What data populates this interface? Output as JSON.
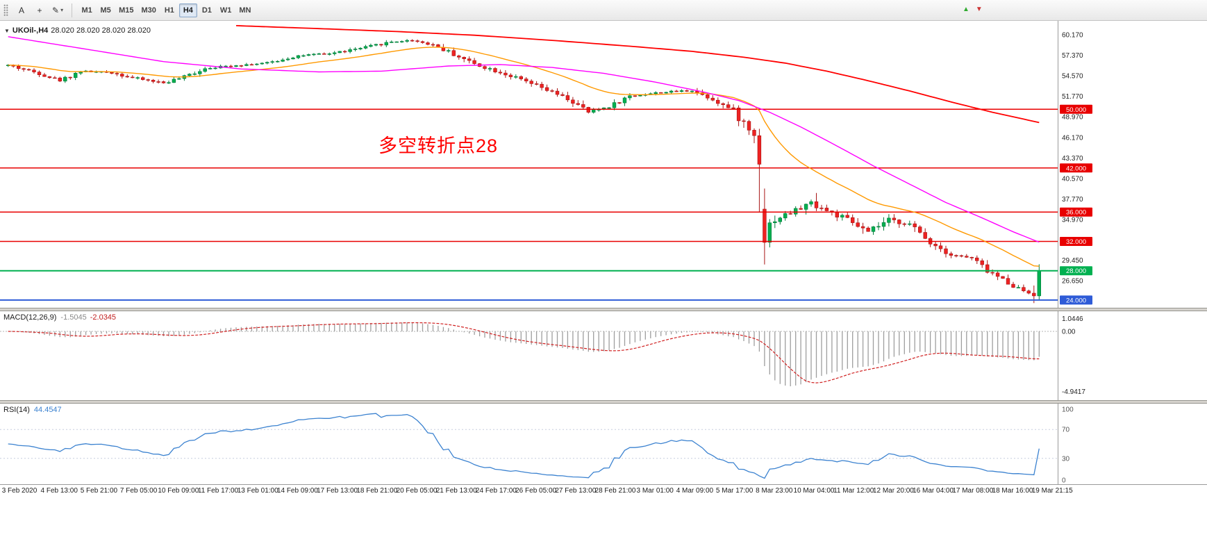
{
  "toolbar": {
    "tools": {
      "text_tool": "A"
    },
    "timeframes": [
      {
        "label": "M1",
        "active": false
      },
      {
        "label": "M5",
        "active": false
      },
      {
        "label": "M15",
        "active": false
      },
      {
        "label": "M30",
        "active": false
      },
      {
        "label": "H1",
        "active": false
      },
      {
        "label": "H4",
        "active": true
      },
      {
        "label": "D1",
        "active": false
      },
      {
        "label": "W1",
        "active": false
      },
      {
        "label": "MN",
        "active": false
      }
    ]
  },
  "icons": {
    "pencil": "✎",
    "caret": "▾",
    "crosshair": "+",
    "dropdown_triangle": "▼",
    "up_arrow": "▲",
    "down_arrow": "▼"
  },
  "chart": {
    "title_symbol": "UKOil-,H4",
    "title_ohlc": "28.020 28.020 28.020 28.020",
    "annotation": {
      "text": "多空转折点28",
      "color": "#ff0000"
    },
    "axis_labels": [
      {
        "p": 60.17,
        "t": "60.170"
      },
      {
        "p": 57.37,
        "t": "57.370"
      },
      {
        "p": 54.57,
        "t": "54.570"
      },
      {
        "p": 51.77,
        "t": "51.770"
      },
      {
        "p": 48.97,
        "t": "48.970"
      },
      {
        "p": 46.17,
        "t": "46.170"
      },
      {
        "p": 43.37,
        "t": "43.370"
      },
      {
        "p": 40.57,
        "t": "40.570"
      },
      {
        "p": 37.77,
        "t": "37.770"
      },
      {
        "p": 34.97,
        "t": "34.970"
      },
      {
        "p": 29.45,
        "t": "29.450"
      },
      {
        "p": 26.65,
        "t": "26.650"
      }
    ],
    "hlines": [
      {
        "p": 50.0,
        "t": "50.000",
        "c": "#e80000",
        "w": 1.5
      },
      {
        "p": 42.0,
        "t": "42.000",
        "c": "#e80000",
        "w": 1.5
      },
      {
        "p": 36.0,
        "t": "36.000",
        "c": "#e80000",
        "w": 1.5
      },
      {
        "p": 32.0,
        "t": "32.000",
        "c": "#e80000",
        "w": 1.5
      },
      {
        "p": 28.0,
        "t": "28.000",
        "c": "#00b050",
        "w": 2
      },
      {
        "p": 24.0,
        "t": "24.000",
        "c": "#2e5bd7",
        "w": 2
      }
    ],
    "time_labels": [
      "3 Feb 2020",
      "4 Feb 13:00",
      "5 Feb 21:00",
      "7 Feb 05:00",
      "10 Feb 09:00",
      "11 Feb 17:00",
      "13 Feb 01:00",
      "14 Feb 09:00",
      "17 Feb 13:00",
      "18 Feb 21:00",
      "20 Feb 05:00",
      "21 Feb 13:00",
      "24 Feb 17:00",
      "26 Feb 05:00",
      "27 Feb 13:00",
      "28 Feb 21:00",
      "3 Mar 01:00",
      "4 Mar 09:00",
      "5 Mar 17:00",
      "8 Mar 23:00",
      "10 Mar 04:00",
      "11 Mar 12:00",
      "12 Mar 20:00",
      "16 Mar 04:00",
      "17 Mar 08:00",
      "18 Mar 16:00",
      "19 Mar 21:15"
    ]
  },
  "chart_data": {
    "type": "candlestick",
    "symbol": "UKOil-",
    "timeframe": "H4",
    "bars": 200,
    "price_range": {
      "max": 61.3,
      "min": 23.9
    },
    "horizontal_levels": [
      50.0,
      42.0,
      36.0,
      32.0,
      28.0,
      24.0
    ],
    "last_close": 28.02,
    "close_anchors": [
      [
        0,
        56.0
      ],
      [
        6,
        54.9
      ],
      [
        10,
        53.9
      ],
      [
        14,
        55.2
      ],
      [
        20,
        55.0
      ],
      [
        24,
        54.3
      ],
      [
        30,
        53.6
      ],
      [
        34,
        54.4
      ],
      [
        38,
        55.6
      ],
      [
        44,
        56.0
      ],
      [
        50,
        56.3
      ],
      [
        56,
        57.3
      ],
      [
        62,
        57.6
      ],
      [
        68,
        58.3
      ],
      [
        74,
        59.2
      ],
      [
        78,
        59.4
      ],
      [
        82,
        58.8
      ],
      [
        86,
        57.5
      ],
      [
        90,
        56.2
      ],
      [
        96,
        54.8
      ],
      [
        102,
        53.2
      ],
      [
        108,
        51.4
      ],
      [
        112,
        49.6
      ],
      [
        116,
        50.4
      ],
      [
        120,
        51.8
      ],
      [
        126,
        52.3
      ],
      [
        132,
        52.6
      ],
      [
        136,
        51.4
      ],
      [
        140,
        49.8
      ],
      [
        143,
        47.2
      ],
      [
        145,
        45.6
      ],
      [
        146,
        33.8
      ],
      [
        148,
        35.0
      ],
      [
        152,
        36.2
      ],
      [
        155,
        37.3
      ],
      [
        158,
        36.2
      ],
      [
        162,
        34.9
      ],
      [
        166,
        33.2
      ],
      [
        170,
        34.9
      ],
      [
        174,
        34.3
      ],
      [
        178,
        31.9
      ],
      [
        182,
        30.2
      ],
      [
        186,
        29.7
      ],
      [
        189,
        28.0
      ],
      [
        192,
        26.8
      ],
      [
        195,
        25.6
      ],
      [
        197,
        25.0
      ],
      [
        198,
        25.4
      ],
      [
        199,
        28.02
      ]
    ],
    "gap": {
      "bar": 146,
      "open": 36.4,
      "low": 31.2
    },
    "spike_high": {
      "bar": 156,
      "high": 38.6
    },
    "seed": 42,
    "ma_orange_period": 24,
    "ma_magenta_anchors": [
      [
        0,
        59.9
      ],
      [
        15,
        58.2
      ],
      [
        30,
        56.5
      ],
      [
        45,
        55.5
      ],
      [
        60,
        55.1
      ],
      [
        72,
        55.2
      ],
      [
        85,
        55.9
      ],
      [
        95,
        56.1
      ],
      [
        105,
        55.7
      ],
      [
        115,
        54.9
      ],
      [
        125,
        53.7
      ],
      [
        134,
        52.4
      ],
      [
        141,
        51.2
      ],
      [
        147,
        49.6
      ],
      [
        153,
        47.6
      ],
      [
        160,
        45.0
      ],
      [
        167,
        42.3
      ],
      [
        174,
        39.8
      ],
      [
        181,
        37.3
      ],
      [
        188,
        35.2
      ],
      [
        194,
        33.3
      ],
      [
        199,
        31.9
      ]
    ],
    "ma_red_anchors": [
      [
        44,
        61.4
      ],
      [
        60,
        61.0
      ],
      [
        75,
        60.6
      ],
      [
        90,
        60.1
      ],
      [
        105,
        59.4
      ],
      [
        120,
        58.6
      ],
      [
        132,
        57.9
      ],
      [
        142,
        57.1
      ],
      [
        150,
        56.3
      ],
      [
        158,
        55.2
      ],
      [
        166,
        53.9
      ],
      [
        174,
        52.5
      ],
      [
        182,
        51.0
      ],
      [
        190,
        49.6
      ],
      [
        199,
        48.2
      ]
    ],
    "subplots": [
      {
        "type": "macd-histogram",
        "params": [
          12,
          26,
          9
        ],
        "macd_value": -1.5045,
        "signal_value": -2.0345,
        "range": [
          -4.9417,
          1.0446
        ]
      },
      {
        "type": "rsi-line",
        "params": [
          14
        ],
        "value": 44.4547,
        "levels": [
          70,
          30
        ],
        "range": [
          0,
          100
        ]
      }
    ]
  },
  "macd": {
    "name": "MACD(12,26,9)",
    "value_main": "-1.5045",
    "value_signal": "-2.0345",
    "axis": [
      "1.0446",
      "0.00",
      "-4.9417"
    ],
    "axis_values": [
      1.0446,
      0,
      -4.9417
    ],
    "fast": 12,
    "slow": 26,
    "signal": 9
  },
  "rsi": {
    "name": "RSI(14)",
    "value": "44.4547",
    "period": 14,
    "axis": [
      {
        "v": 100,
        "t": "100"
      },
      {
        "v": 70,
        "t": "70"
      },
      {
        "v": 30,
        "t": "30"
      },
      {
        "v": 0,
        "t": "0"
      }
    ],
    "levels": [
      70,
      30
    ]
  },
  "colors": {
    "up": "#00b050",
    "down": "#ee2222",
    "up_stroke": "#007a38",
    "down_stroke": "#a81414",
    "ma_fast": "#ff9900",
    "ma_mid": "#ff00ff",
    "ma_slow": "#ff0000",
    "macd_hist": "#9e9e9e",
    "macd_signal": "#d02020",
    "rsi_line": "#3b82d0",
    "hline_red": "#e80000",
    "hline_green": "#00b050",
    "hline_blue": "#2e5bd7",
    "annotation": "#ff0000",
    "axis_text": "#222222"
  }
}
